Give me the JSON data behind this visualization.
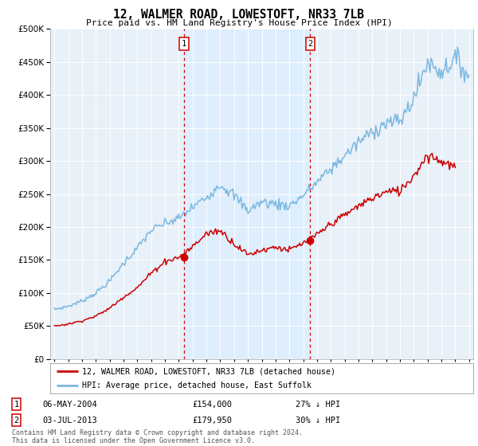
{
  "title": "12, WALMER ROAD, LOWESTOFT, NR33 7LB",
  "subtitle": "Price paid vs. HM Land Registry's House Price Index (HPI)",
  "legend_line1": "12, WALMER ROAD, LOWESTOFT, NR33 7LB (detached house)",
  "legend_line2": "HPI: Average price, detached house, East Suffolk",
  "footnote": "Contains HM Land Registry data © Crown copyright and database right 2024.\nThis data is licensed under the Open Government Licence v3.0.",
  "transaction1_label": "1",
  "transaction1_date": "06-MAY-2004",
  "transaction1_price": "£154,000",
  "transaction1_hpi": "27% ↓ HPI",
  "transaction1_x": 2004.38,
  "transaction1_y": 154000,
  "transaction2_label": "2",
  "transaction2_date": "03-JUL-2013",
  "transaction2_price": "£179,950",
  "transaction2_hpi": "30% ↓ HPI",
  "transaction2_x": 2013.5,
  "transaction2_y": 179950,
  "hpi_color": "#7bb8e0",
  "price_color": "#cc0000",
  "shade_color": "#ddeeff",
  "vline_color": "#cc0000",
  "plot_bg": "#e8f0f8",
  "ylim": [
    0,
    500000
  ],
  "xlim": [
    1994.7,
    2025.3
  ],
  "yticks": [
    0,
    50000,
    100000,
    150000,
    200000,
    250000,
    300000,
    350000,
    400000,
    450000,
    500000
  ],
  "xticks": [
    1995,
    1996,
    1997,
    1998,
    1999,
    2000,
    2001,
    2002,
    2003,
    2004,
    2005,
    2006,
    2007,
    2008,
    2009,
    2010,
    2011,
    2012,
    2013,
    2014,
    2015,
    2016,
    2017,
    2018,
    2019,
    2020,
    2021,
    2022,
    2023,
    2024,
    2025
  ],
  "hpi_anchor_years": [
    1995,
    1996,
    1997,
    1998,
    1999,
    2000,
    2001,
    2002,
    2003,
    2004,
    2005,
    2006,
    2007,
    2008,
    2009,
    2010,
    2011,
    2012,
    2013,
    2014,
    2015,
    2016,
    2017,
    2018,
    2019,
    2020,
    2021,
    2022,
    2023,
    2024,
    2025
  ],
  "hpi_anchor_vals": [
    75000,
    80000,
    88000,
    100000,
    118000,
    145000,
    168000,
    195000,
    205000,
    213000,
    230000,
    245000,
    265000,
    248000,
    225000,
    238000,
    235000,
    232000,
    248000,
    268000,
    288000,
    308000,
    328000,
    345000,
    358000,
    360000,
    395000,
    450000,
    435000,
    455000,
    430000
  ],
  "price_anchor_years": [
    1995,
    1996,
    1997,
    1998,
    1999,
    2000,
    2001,
    2002,
    2003,
    2004,
    2005,
    2006,
    2007,
    2008,
    2009,
    2010,
    2011,
    2012,
    2013,
    2014,
    2015,
    2016,
    2017,
    2018,
    2019,
    2020,
    2021,
    2022,
    2023,
    2024
  ],
  "price_anchor_vals": [
    50000,
    53000,
    58000,
    65000,
    77000,
    94000,
    108000,
    130000,
    148000,
    154000,
    170000,
    190000,
    195000,
    175000,
    158000,
    165000,
    170000,
    165000,
    175000,
    188000,
    205000,
    218000,
    232000,
    244000,
    253000,
    255000,
    278000,
    310000,
    300000,
    290000
  ]
}
